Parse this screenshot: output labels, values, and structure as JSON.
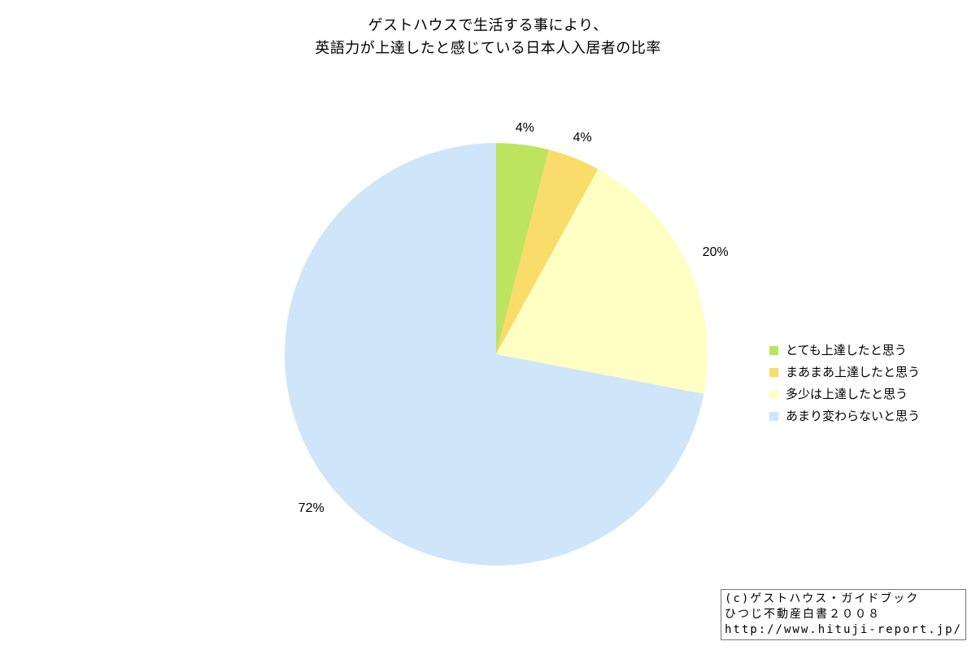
{
  "chart_data": {
    "type": "pie",
    "title_lines": [
      "ゲストハウスで生活する事により、",
      "英語力が上達したと感じている日本人入居者の比率"
    ],
    "categories": [
      "とても上達したと思う",
      "まあまあ上達したと思う",
      "多少は上達したと思う",
      "あまり変わらないと思う"
    ],
    "values": [
      4,
      4,
      20,
      72
    ],
    "labels": [
      "4%",
      "4%",
      "20%",
      "72%"
    ],
    "colors": [
      "#bde35f",
      "#f9dc6a",
      "#ffffc4",
      "#cfe5f9"
    ],
    "legend_position": "right"
  },
  "credit": [
    "(c)ゲストハウス・ガイドブック",
    "ひつじ不動産白書２００８",
    "http://www.hituji-report.jp/"
  ]
}
